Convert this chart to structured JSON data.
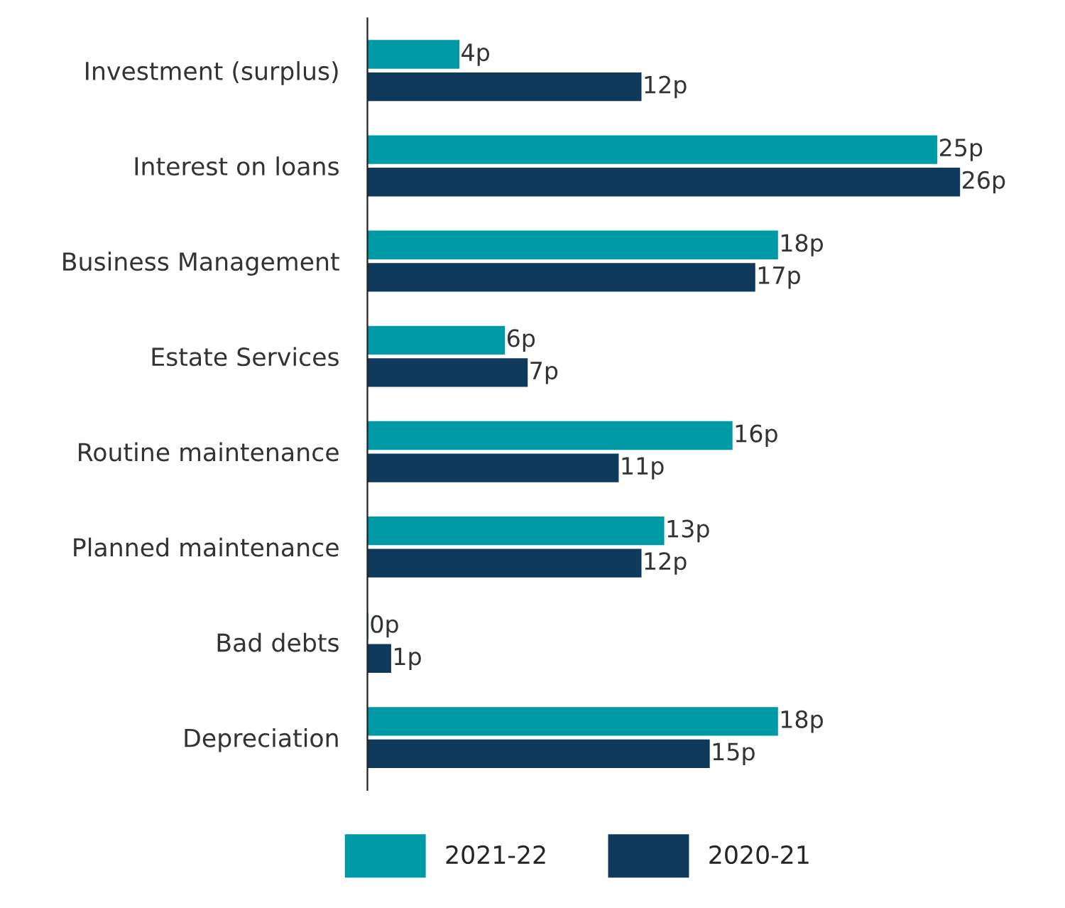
{
  "chart_data": {
    "type": "bar",
    "orientation": "horizontal",
    "categories": [
      "Investment (surplus)",
      "Interest on loans",
      "Business Management",
      "Estate Services",
      "Routine maintenance",
      "Planned maintenance",
      "Bad debts",
      "Depreciation"
    ],
    "series": [
      {
        "name": "2021-22",
        "color": "#009aa6",
        "values": [
          4,
          25,
          18,
          6,
          16,
          13,
          0,
          18
        ],
        "value_labels": [
          "4p",
          "25p",
          "18p",
          "6p",
          "16p",
          "13p",
          "0p",
          "18p"
        ]
      },
      {
        "name": "2020-21",
        "color": "#0f3a5b",
        "values": [
          12,
          26,
          17,
          7,
          11,
          12,
          1,
          15
        ],
        "value_labels": [
          "12p",
          "26p",
          "17p",
          "7p",
          "11p",
          "12p",
          "1p",
          "15p"
        ]
      }
    ],
    "legend": "bottom",
    "grid": false
  }
}
